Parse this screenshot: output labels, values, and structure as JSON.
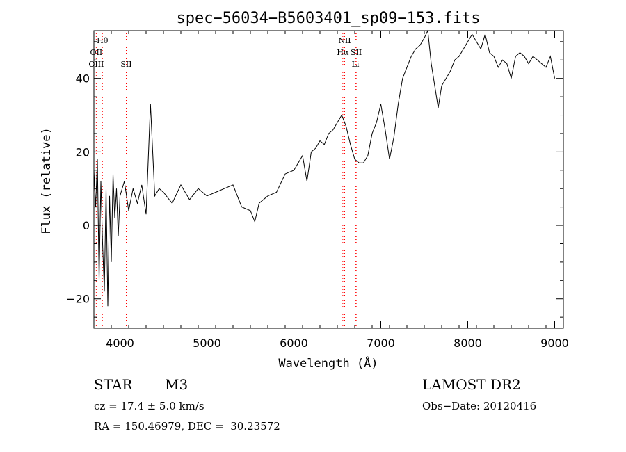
{
  "chart_data": {
    "type": "line",
    "title": "spec−56034−B5603401_sp09−153.fits",
    "xlabel": "Wavelength (Å)",
    "ylabel": "Flux (relative)",
    "xlim": [
      3700,
      9100
    ],
    "ylim": [
      -28,
      53
    ],
    "xticks": [
      4000,
      5000,
      6000,
      7000,
      8000,
      9000
    ],
    "yticks": [
      -20,
      0,
      20,
      40
    ],
    "xtick_labels": [
      "4000",
      "5000",
      "6000",
      "7000",
      "8000",
      "9000"
    ],
    "ytick_labels": [
      "−20",
      "0",
      "20",
      "40"
    ],
    "grid": false,
    "line_color": "#000000",
    "marker_color": "#ff0000",
    "line_markers": [
      {
        "label": "Hθ",
        "x": 3798,
        "row": 0
      },
      {
        "label": "OII",
        "x": 3727,
        "row": 1
      },
      {
        "label": "OIII",
        "x": 3727,
        "row": 2
      },
      {
        "label": "SII",
        "x": 4072,
        "row": 2
      },
      {
        "label": "NII",
        "x": 6584,
        "row": 0
      },
      {
        "label": "Hα",
        "x": 6563,
        "row": 1
      },
      {
        "label": "SII",
        "x": 6717,
        "row": 1
      },
      {
        "label": "Li",
        "x": 6708,
        "row": 2
      }
    ],
    "series": [
      {
        "x": [
          3700,
          3720,
          3740,
          3760,
          3780,
          3800,
          3820,
          3840,
          3860,
          3880,
          3900,
          3920,
          3940,
          3960,
          3980,
          4000,
          4050,
          4100,
          4150,
          4200,
          4250,
          4300,
          4350,
          4400,
          4450,
          4500,
          4600,
          4700,
          4800,
          4900,
          5000,
          5100,
          5200,
          5300,
          5400,
          5500,
          5550,
          5600,
          5700,
          5800,
          5900,
          6000,
          6050,
          6100,
          6150,
          6200,
          6250,
          6300,
          6350,
          6400,
          6450,
          6500,
          6550,
          6600,
          6650,
          6700,
          6750,
          6800,
          6850,
          6900,
          6950,
          7000,
          7050,
          7100,
          7150,
          7200,
          7250,
          7300,
          7350,
          7400,
          7450,
          7500,
          7540,
          7580,
          7620,
          7660,
          7700,
          7750,
          7800,
          7850,
          7900,
          7950,
          8000,
          8050,
          8100,
          8150,
          8200,
          8250,
          8300,
          8350,
          8400,
          8450,
          8500,
          8550,
          8600,
          8650,
          8700,
          8750,
          8800,
          8850,
          8900,
          8950,
          9000
        ],
        "y": [
          15,
          5,
          18,
          -15,
          12,
          -5,
          -18,
          10,
          -22,
          8,
          -10,
          14,
          2,
          10,
          -3,
          8,
          12,
          4,
          10,
          6,
          11,
          3,
          33,
          8,
          10,
          9,
          6,
          11,
          7,
          10,
          8,
          9,
          10,
          11,
          5,
          4,
          1,
          6,
          8,
          9,
          14,
          15,
          17,
          19,
          12,
          20,
          21,
          23,
          22,
          25,
          26,
          28,
          30,
          27,
          22,
          18,
          17,
          17,
          19,
          25,
          28,
          33,
          26,
          18,
          24,
          33,
          40,
          43,
          46,
          48,
          49,
          51,
          55,
          44,
          38,
          32,
          38,
          40,
          42,
          45,
          46,
          48,
          50,
          52,
          50,
          48,
          52,
          47,
          46,
          43,
          45,
          44,
          40,
          46,
          47,
          46,
          44,
          46,
          45,
          44,
          43,
          46,
          40
        ]
      }
    ]
  },
  "info": {
    "object_type": "STAR",
    "subclass": "M3",
    "survey": "LAMOST DR2",
    "cz": "cz = 17.4 ± 5.0 km/s",
    "obs_date": "Obs−Date: 20120416",
    "radec": "RA = 150.46979, DEC =  30.23572"
  }
}
